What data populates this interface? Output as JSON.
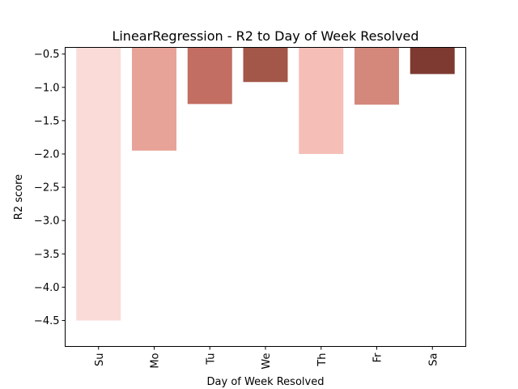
{
  "chart_data": {
    "type": "bar",
    "title": "LinearRegression - R2 to Day of Week Resolved",
    "xlabel": "Day of Week Resolved",
    "ylabel": "R2 score",
    "categories": [
      "Su",
      "Mo",
      "Tu",
      "We",
      "Th",
      "Fr",
      "Sa"
    ],
    "values": [
      -4.5,
      -1.95,
      -1.25,
      -0.92,
      -2.0,
      -1.26,
      -0.8
    ],
    "colors": [
      "#fadbd7",
      "#e8a398",
      "#c26e62",
      "#a25748",
      "#f5bfb7",
      "#d4887b",
      "#7e3a31"
    ],
    "ylim": [
      -4.89,
      -0.4
    ],
    "yticks": [
      -0.5,
      -1.0,
      -1.5,
      -2.0,
      -2.5,
      -3.0,
      -3.5,
      -4.0,
      -4.5
    ],
    "ytick_labels": [
      "−0.5",
      "−1.0",
      "−1.5",
      "−2.0",
      "−2.5",
      "−3.0",
      "−3.5",
      "−4.0",
      "−4.5"
    ],
    "grid": false,
    "legend": "none"
  }
}
